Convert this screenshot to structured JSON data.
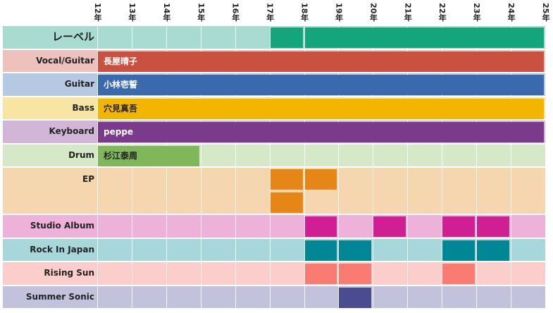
{
  "chart_data": {
    "type": "timeline",
    "x_ticks": [
      "12年",
      "13年",
      "14年",
      "15年",
      "16年",
      "17年",
      "18年",
      "19年",
      "20年",
      "21年",
      "22年",
      "23年",
      "24年",
      "25年"
    ],
    "rows": [
      {
        "label": "レーベル",
        "bg": "#a8dcd0",
        "cell_color": "#15a57a",
        "blocks": [
          {
            "start": 5,
            "end": 6
          },
          {
            "start": 6,
            "end": 13
          }
        ]
      },
      {
        "label": "Vocal/Guitar",
        "bg": "#edc1bc",
        "cell_color": "#ca5040",
        "blocks": [
          {
            "start": 0,
            "end": 13,
            "text": "長屋晴子",
            "text_color": "#ffffff"
          }
        ]
      },
      {
        "label": "Guitar",
        "bg": "#b6c9e3",
        "cell_color": "#3a6aad",
        "blocks": [
          {
            "start": 0,
            "end": 13,
            "text": "小林壱誓",
            "text_color": "#ffffff"
          }
        ]
      },
      {
        "label": "Bass",
        "bg": "#f8e4a3",
        "cell_color": "#f2b600",
        "blocks": [
          {
            "start": 0,
            "end": 13,
            "text": "穴見真吾",
            "text_color": "#222222"
          }
        ]
      },
      {
        "label": "Keyboard",
        "bg": "#d2b6d8",
        "cell_color": "#7b3b8c",
        "blocks": [
          {
            "start": 0,
            "end": 13,
            "text": "peppe",
            "text_color": "#ffffff"
          }
        ]
      },
      {
        "label": "Drum",
        "bg": "#d5e8c8",
        "cell_color": "#7fb75a",
        "blocks": [
          {
            "start": 0,
            "end": 3,
            "text": "杉江泰周",
            "text_color": "#222222"
          }
        ]
      },
      {
        "label": "EP",
        "bg": "#f6d6ae",
        "cell_color": "#e58616",
        "tall": true,
        "blocks": [
          {
            "start": 5,
            "end": 6,
            "lane": 0
          },
          {
            "start": 6,
            "end": 7,
            "lane": 0
          },
          {
            "start": 5,
            "end": 6,
            "lane": 1
          }
        ]
      },
      {
        "label": "Studio Album",
        "bg": "#eeb1d9",
        "cell_color": "#cf1f93",
        "blocks": [
          {
            "start": 6,
            "end": 7
          },
          {
            "start": 8,
            "end": 9
          },
          {
            "start": 10,
            "end": 11
          },
          {
            "start": 11,
            "end": 12
          }
        ]
      },
      {
        "label": "Rock In Japan",
        "bg": "#a8d7db",
        "cell_color": "#008694",
        "blocks": [
          {
            "start": 6,
            "end": 7
          },
          {
            "start": 7,
            "end": 8
          },
          {
            "start": 10,
            "end": 11
          },
          {
            "start": 11,
            "end": 12
          }
        ]
      },
      {
        "label": "Rising Sun",
        "bg": "#fbcdcb",
        "cell_color": "#fa7b72",
        "blocks": [
          {
            "start": 6,
            "end": 7
          },
          {
            "start": 7,
            "end": 8
          },
          {
            "start": 10,
            "end": 11
          }
        ]
      },
      {
        "label": "Summer Sonic",
        "bg": "#c2c2dc",
        "cell_color": "#4a4c8f",
        "blocks": [
          {
            "start": 7,
            "end": 8
          }
        ]
      }
    ]
  }
}
